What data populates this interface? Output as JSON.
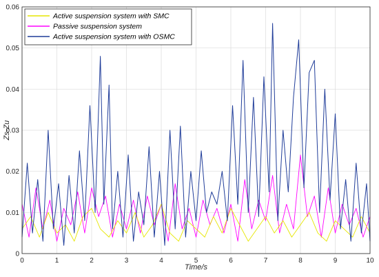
{
  "chart_data": {
    "type": "line",
    "title": "",
    "xlabel": "Time/s",
    "ylabel": "Zs-Zu",
    "xlim": [
      0,
      10
    ],
    "ylim": [
      0,
      0.06
    ],
    "xticks": [
      "0",
      "1",
      "2",
      "3",
      "4",
      "5",
      "6",
      "7",
      "8",
      "9",
      "10"
    ],
    "yticks": [
      "0",
      "0.01",
      "0.02",
      "0.03",
      "0.04",
      "0.05",
      "0.06"
    ],
    "grid": true,
    "legend_position": "top-left",
    "series": [
      {
        "name": "Active suspension system with SMC",
        "color": "#e6e600",
        "x": [
          0,
          0.25,
          0.5,
          0.75,
          1,
          1.25,
          1.5,
          1.75,
          2,
          2.25,
          2.5,
          2.75,
          3,
          3.25,
          3.5,
          3.75,
          4,
          4.25,
          4.5,
          4.75,
          5,
          5.25,
          5.5,
          5.75,
          6,
          6.25,
          6.5,
          6.75,
          7,
          7.25,
          7.5,
          7.75,
          8,
          8.25,
          8.5,
          8.75,
          9,
          9.25,
          9.5,
          9.75,
          10
        ],
        "y": [
          0.006,
          0.009,
          0.004,
          0.01,
          0.005,
          0.007,
          0.003,
          0.009,
          0.011,
          0.006,
          0.004,
          0.008,
          0.005,
          0.01,
          0.004,
          0.007,
          0.012,
          0.005,
          0.003,
          0.008,
          0.006,
          0.004,
          0.009,
          0.005,
          0.011,
          0.007,
          0.003,
          0.006,
          0.009,
          0.005,
          0.008,
          0.004,
          0.007,
          0.01,
          0.005,
          0.003,
          0.008,
          0.006,
          0.004,
          0.009,
          0.005
        ]
      },
      {
        "name": "Passive suspension system",
        "color": "#ff00ff",
        "x": [
          0,
          0.2,
          0.4,
          0.6,
          0.8,
          1,
          1.2,
          1.4,
          1.6,
          1.8,
          2,
          2.2,
          2.4,
          2.6,
          2.8,
          3,
          3.2,
          3.4,
          3.6,
          3.8,
          4,
          4.2,
          4.4,
          4.6,
          4.8,
          5,
          5.2,
          5.4,
          5.6,
          5.8,
          6,
          6.2,
          6.4,
          6.6,
          6.8,
          7,
          7.2,
          7.4,
          7.6,
          7.8,
          8,
          8.2,
          8.4,
          8.6,
          8.8,
          9,
          9.2,
          9.4,
          9.6,
          9.8,
          10
        ],
        "y": [
          0.012,
          0.004,
          0.016,
          0.006,
          0.013,
          0.003,
          0.011,
          0.007,
          0.015,
          0.005,
          0.016,
          0.009,
          0.014,
          0.004,
          0.012,
          0.006,
          0.013,
          0.005,
          0.014,
          0.007,
          0.012,
          0.003,
          0.017,
          0.006,
          0.011,
          0.004,
          0.013,
          0.007,
          0.011,
          0.005,
          0.012,
          0.003,
          0.018,
          0.006,
          0.013,
          0.008,
          0.019,
          0.005,
          0.012,
          0.006,
          0.024,
          0.009,
          0.014,
          0.004,
          0.016,
          0.005,
          0.012,
          0.007,
          0.011,
          0.004,
          0.009
        ]
      },
      {
        "name": "Active suspension system with OSMC",
        "color": "#1f3c99",
        "x": [
          0,
          0.15,
          0.3,
          0.45,
          0.6,
          0.75,
          0.9,
          1.05,
          1.2,
          1.35,
          1.5,
          1.65,
          1.8,
          1.95,
          2.1,
          2.25,
          2.35,
          2.5,
          2.6,
          2.75,
          2.9,
          3.05,
          3.2,
          3.35,
          3.5,
          3.65,
          3.8,
          3.95,
          4.1,
          4.25,
          4.4,
          4.55,
          4.7,
          4.85,
          5,
          5.15,
          5.3,
          5.45,
          5.6,
          5.75,
          5.9,
          6.05,
          6.2,
          6.35,
          6.5,
          6.65,
          6.8,
          6.95,
          7.1,
          7.2,
          7.35,
          7.5,
          7.65,
          7.8,
          7.95,
          8.1,
          8.25,
          8.4,
          8.55,
          8.7,
          8.85,
          9,
          9.15,
          9.3,
          9.45,
          9.6,
          9.75,
          9.9,
          10
        ],
        "y": [
          0.004,
          0.022,
          0.005,
          0.018,
          0.003,
          0.03,
          0.006,
          0.017,
          0.002,
          0.019,
          0.005,
          0.025,
          0.008,
          0.036,
          0.01,
          0.048,
          0.012,
          0.041,
          0.006,
          0.02,
          0.004,
          0.024,
          0.003,
          0.015,
          0.007,
          0.026,
          0.004,
          0.02,
          0.002,
          0.03,
          0.006,
          0.031,
          0.004,
          0.02,
          0.008,
          0.025,
          0.01,
          0.015,
          0.012,
          0.02,
          0.008,
          0.036,
          0.012,
          0.047,
          0.01,
          0.038,
          0.009,
          0.043,
          0.015,
          0.056,
          0.008,
          0.03,
          0.015,
          0.038,
          0.052,
          0.016,
          0.044,
          0.047,
          0.01,
          0.04,
          0.013,
          0.034,
          0.006,
          0.018,
          0.003,
          0.022,
          0.005,
          0.017,
          0.003
        ]
      }
    ]
  }
}
